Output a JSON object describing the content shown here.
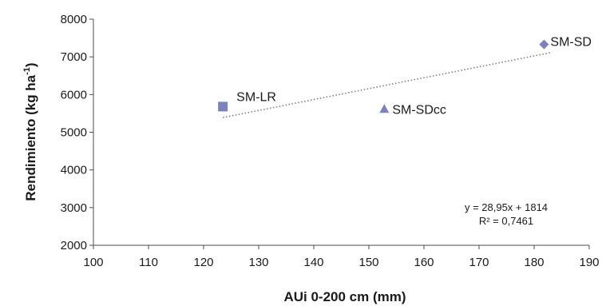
{
  "chart_data": {
    "type": "scatter",
    "xlabel": "AUi 0-200 cm (mm)",
    "ylabel_main": "Rendimiento (kg ha",
    "ylabel_sup": "-1",
    "ylabel_end": ")",
    "xlim": [
      100,
      190
    ],
    "ylim": [
      2000,
      8000
    ],
    "xticks": [
      100,
      110,
      120,
      130,
      140,
      150,
      160,
      170,
      180,
      190
    ],
    "yticks": [
      2000,
      3000,
      4000,
      5000,
      6000,
      7000,
      8000
    ],
    "grid": false,
    "marker_color": "#7b82c0",
    "trendline_color": "#7f7f7f",
    "points": [
      {
        "label": "SM-LR",
        "x": 123.5,
        "y": 5680,
        "marker": "square"
      },
      {
        "label": "SM-SDcc",
        "x": 152.8,
        "y": 5620,
        "marker": "triangle"
      },
      {
        "label": "SM-SD",
        "x": 181.8,
        "y": 7330,
        "marker": "diamond"
      }
    ],
    "trendline": {
      "type": "linear",
      "slope": 28.95,
      "intercept": 1814,
      "x_range": [
        123.5,
        183
      ],
      "equation": "y = 28,95x + 1814",
      "r2": "R² = 0,7461"
    }
  }
}
